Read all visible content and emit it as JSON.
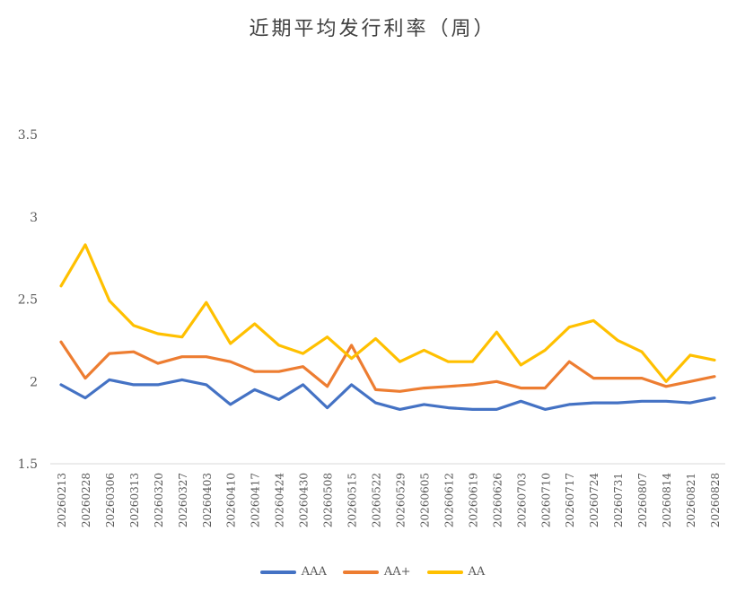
{
  "chart_data": {
    "type": "line",
    "title": "近期平均发行利率（周）",
    "xlabel": "",
    "ylabel": "",
    "ylim": [
      1.5,
      3.5
    ],
    "yticks": [
      "1.5",
      "2",
      "2.5",
      "3",
      "3.5"
    ],
    "grid": false,
    "legend_position": "bottom",
    "categories": [
      "20260213",
      "20260228",
      "20260306",
      "20260313",
      "20260320",
      "20260327",
      "20260403",
      "20260410",
      "20260417",
      "20260424",
      "20260430",
      "20260508",
      "20260515",
      "20260522",
      "20260529",
      "20260605",
      "20260612",
      "20260619",
      "20260626",
      "20260703",
      "20260710",
      "20260717",
      "20260724",
      "20260731",
      "20260807",
      "20260814",
      "20260821",
      "20260828"
    ],
    "series": [
      {
        "name": "AAA",
        "color": "#4472C4",
        "values": [
          1.98,
          1.9,
          2.01,
          1.98,
          1.98,
          2.01,
          1.98,
          1.86,
          1.95,
          1.89,
          1.98,
          1.84,
          1.98,
          1.87,
          1.83,
          1.86,
          1.84,
          1.83,
          1.83,
          1.88,
          1.83,
          1.86,
          1.87,
          1.87,
          1.88,
          1.88,
          1.87,
          1.9
        ]
      },
      {
        "name": "AA+",
        "color": "#ED7D31",
        "values": [
          2.24,
          2.02,
          2.17,
          2.18,
          2.11,
          2.15,
          2.15,
          2.12,
          2.06,
          2.06,
          2.09,
          1.97,
          2.22,
          1.95,
          1.94,
          1.96,
          1.97,
          1.98,
          2.0,
          1.96,
          1.96,
          2.12,
          2.02,
          2.02,
          2.02,
          1.97,
          2.0,
          2.03
        ]
      },
      {
        "name": "AA",
        "color": "#FFC000",
        "values": [
          2.58,
          2.83,
          2.49,
          2.34,
          2.29,
          2.27,
          2.48,
          2.23,
          2.35,
          2.22,
          2.17,
          2.27,
          2.14,
          2.26,
          2.12,
          2.19,
          2.12,
          2.12,
          2.3,
          2.1,
          2.19,
          2.33,
          2.37,
          2.25,
          2.18,
          2.0,
          2.16,
          2.13
        ]
      }
    ]
  }
}
